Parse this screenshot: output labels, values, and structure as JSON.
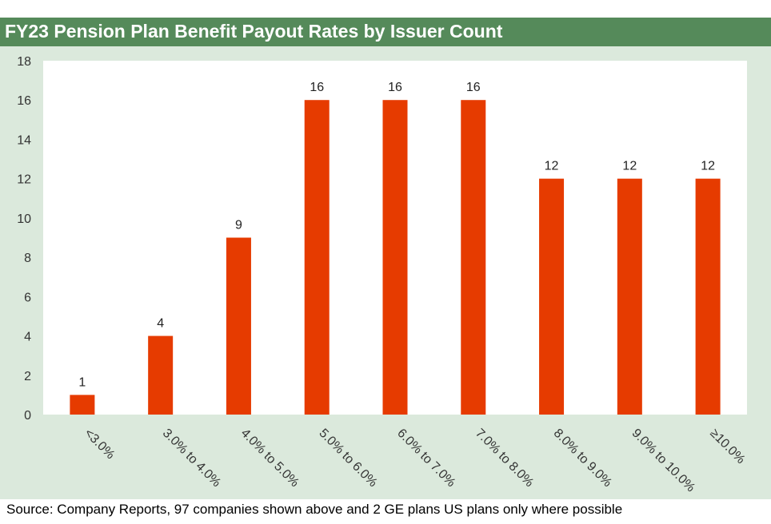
{
  "title": "FY23 Pension Plan Benefit Payout Rates by Issuer Count",
  "source": "Source: Company Reports, 97 companies shown above and 2 GE plans US plans only where possible",
  "colors": {
    "bar": "#e63b00",
    "title_bg": "#558a5a",
    "panel_bg": "#dbe9dc",
    "plot_bg": "#ffffff"
  },
  "chart_data": {
    "type": "bar",
    "title": "FY23 Pension Plan Benefit Payout Rates by Issuer Count",
    "categories": [
      "<3.0%",
      "3.0% to 4.0%",
      "4.0% to 5.0%",
      "5.0% to 6.0%",
      "6.0% to 7.0%",
      "7.0% to 8.0%",
      "8.0% to 9.0%",
      "9.0% to 10.0%",
      "≥10.0%"
    ],
    "values": [
      1,
      4,
      9,
      16,
      16,
      16,
      12,
      12,
      12
    ],
    "xlabel": "",
    "ylabel": "",
    "ylim": [
      0,
      18
    ],
    "yticks": [
      0,
      2,
      4,
      6,
      8,
      10,
      12,
      14,
      16,
      18
    ],
    "grid": false,
    "data_labels": true
  }
}
